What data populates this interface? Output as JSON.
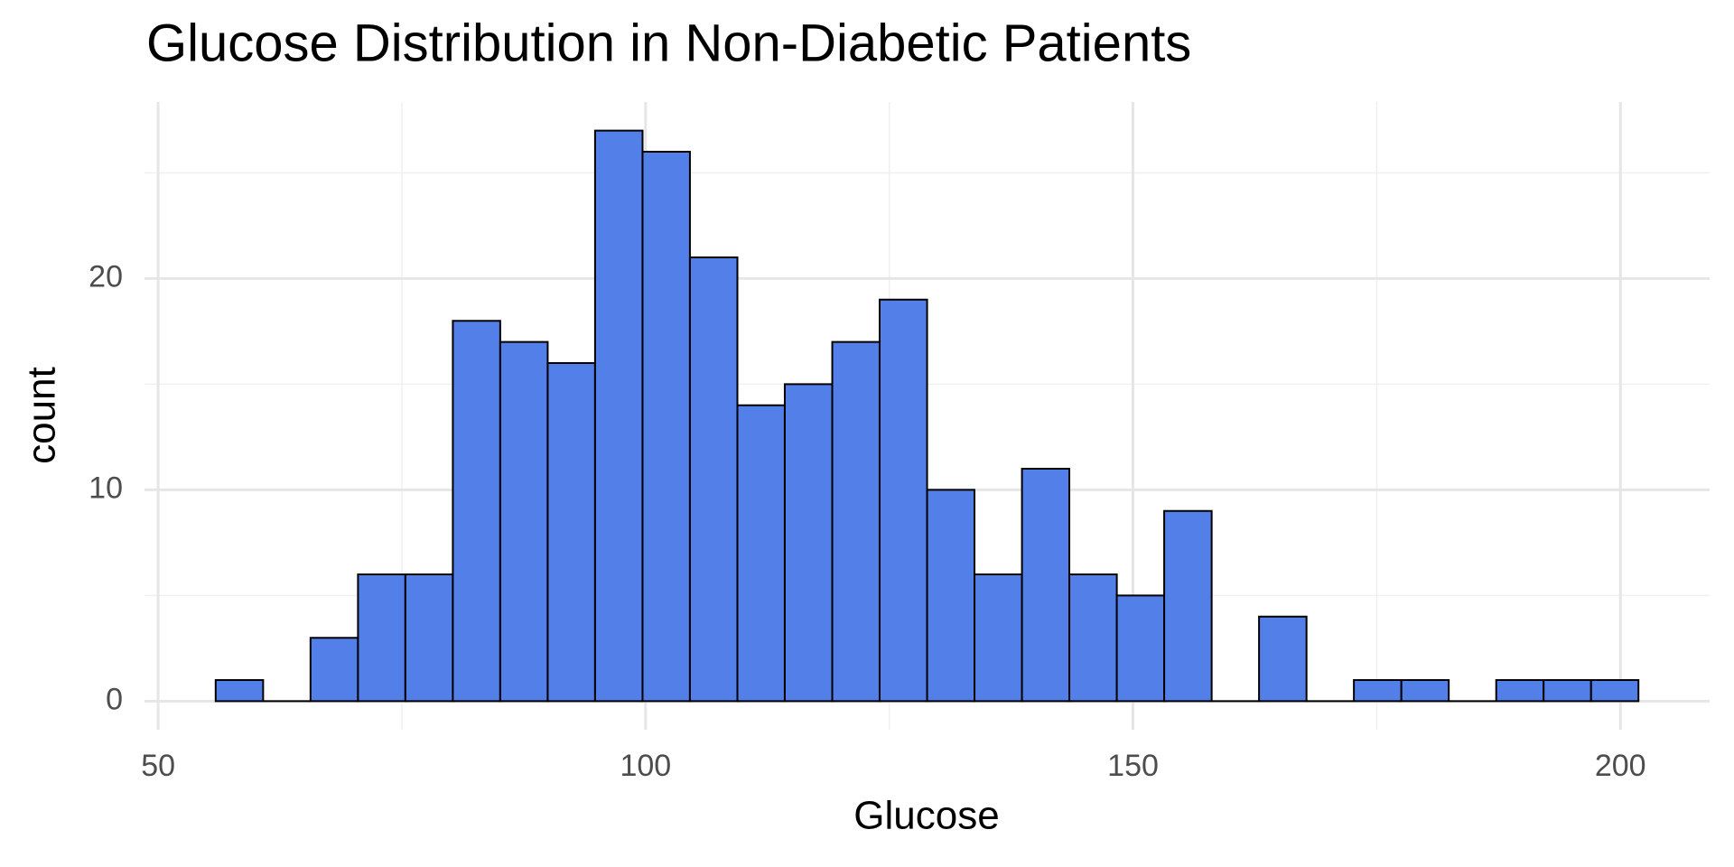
{
  "chart_data": {
    "type": "histogram",
    "title": "Glucose Distribution in Non-Diabetic Patients",
    "x_label": "Glucose",
    "y_label": "count",
    "bins": [
      55.9,
      60.77,
      65.63,
      70.5,
      75.36,
      80.23,
      85.09,
      89.96,
      94.82,
      99.69,
      104.55,
      109.42,
      114.28,
      119.15,
      124.01,
      128.88,
      133.74,
      138.61,
      143.47,
      148.34,
      153.2,
      158.07,
      162.93,
      167.8,
      172.66,
      177.53,
      182.39,
      187.26,
      192.12,
      196.99,
      201.85
    ],
    "values": [
      1,
      0,
      3,
      6,
      6,
      18,
      17,
      16,
      27,
      26,
      21,
      14,
      15,
      17,
      19,
      10,
      6,
      11,
      6,
      5,
      9,
      0,
      4,
      0,
      1,
      1,
      0,
      1,
      1,
      1
    ],
    "color": "#527fe8",
    "edge_color": "#000000",
    "xlim": [
      48.6,
      209.15
    ],
    "xticks": [
      50,
      100,
      150,
      200
    ],
    "x_minor_grid": [
      75,
      125,
      175
    ],
    "ylim": [
      -1.35,
      28.35
    ],
    "yticks": [
      0,
      10,
      20
    ],
    "y_minor_grid": [
      5,
      15,
      25
    ],
    "grid": true
  }
}
